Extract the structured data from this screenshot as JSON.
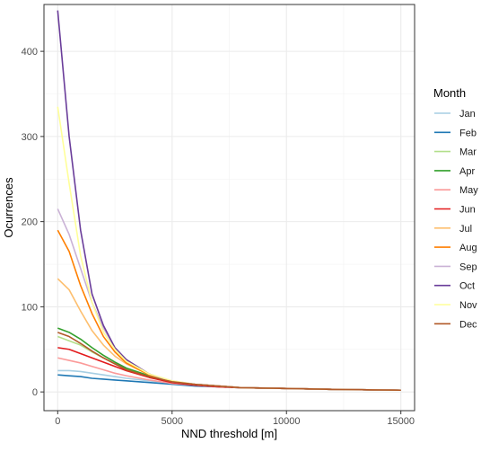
{
  "chart_data": {
    "type": "line",
    "xlabel": "NND threshold [m]",
    "ylabel": "Ocurrences",
    "xlim": [
      -600,
      15600
    ],
    "ylim": [
      -22,
      455
    ],
    "x_ticks": [
      0,
      5000,
      10000,
      15000
    ],
    "x_tick_labels": [
      "0",
      "5000",
      "10000",
      "15000"
    ],
    "y_ticks": [
      0,
      100,
      200,
      300,
      400
    ],
    "y_tick_labels": [
      "0",
      "100",
      "200",
      "300",
      "400"
    ],
    "grid": true,
    "legend": {
      "title": "Month",
      "position": "right"
    },
    "series": [
      {
        "name": "Jan",
        "color": "#a6cee3",
        "x": [
          0,
          500,
          1000,
          1500,
          2000,
          2500,
          3000,
          4000,
          5000,
          6000,
          7000,
          8000,
          10000,
          12000,
          15000
        ],
        "y": [
          25,
          25,
          24,
          22,
          20,
          18,
          16,
          13,
          10,
          8,
          6,
          5,
          4,
          3,
          2
        ]
      },
      {
        "name": "Feb",
        "color": "#1f78b4",
        "x": [
          0,
          500,
          1000,
          1500,
          2000,
          2500,
          3000,
          4000,
          5000,
          6000,
          7000,
          8000,
          10000,
          12000,
          15000
        ],
        "y": [
          20,
          19,
          18,
          16,
          15,
          14,
          13,
          11,
          9,
          7,
          6,
          5,
          4,
          3,
          2
        ]
      },
      {
        "name": "Mar",
        "color": "#b2df8a",
        "x": [
          0,
          500,
          1000,
          1500,
          2000,
          2500,
          3000,
          4000,
          5000,
          6000,
          7000,
          8000,
          10000,
          12000,
          15000
        ],
        "y": [
          65,
          60,
          55,
          47,
          40,
          33,
          27,
          19,
          12,
          9,
          7,
          5,
          4,
          3,
          2
        ]
      },
      {
        "name": "Apr",
        "color": "#33a02c",
        "x": [
          0,
          500,
          1000,
          1500,
          2000,
          2500,
          3000,
          4000,
          5000,
          6000,
          7000,
          8000,
          10000,
          12000,
          15000
        ],
        "y": [
          75,
          70,
          62,
          52,
          43,
          35,
          28,
          19,
          12,
          9,
          7,
          5,
          4,
          3,
          2
        ]
      },
      {
        "name": "May",
        "color": "#fb9a99",
        "x": [
          0,
          500,
          1000,
          1500,
          2000,
          2500,
          3000,
          4000,
          5000,
          6000,
          7000,
          8000,
          10000,
          12000,
          15000
        ],
        "y": [
          40,
          37,
          34,
          30,
          26,
          22,
          19,
          14,
          10,
          8,
          6,
          5,
          4,
          3,
          2
        ]
      },
      {
        "name": "Jun",
        "color": "#e31a1c",
        "x": [
          0,
          500,
          1000,
          1500,
          2000,
          2500,
          3000,
          4000,
          5000,
          6000,
          7000,
          8000,
          10000,
          12000,
          15000
        ],
        "y": [
          52,
          50,
          45,
          40,
          35,
          30,
          25,
          17,
          11,
          8,
          6,
          5,
          4,
          3,
          2
        ]
      },
      {
        "name": "Jul",
        "color": "#fdbf6f",
        "x": [
          0,
          500,
          1000,
          1500,
          2000,
          2500,
          3000,
          4000,
          5000,
          6000,
          7000,
          8000,
          10000,
          12000,
          15000
        ],
        "y": [
          133,
          120,
          95,
          72,
          55,
          42,
          33,
          20,
          12,
          9,
          7,
          5,
          4,
          3,
          2
        ]
      },
      {
        "name": "Aug",
        "color": "#ff7f00",
        "x": [
          0,
          500,
          1000,
          1500,
          2000,
          2500,
          3000,
          4000,
          5000,
          6000,
          7000,
          8000,
          10000,
          12000,
          15000
        ],
        "y": [
          190,
          165,
          125,
          92,
          65,
          47,
          34,
          20,
          12,
          9,
          7,
          5,
          4,
          3,
          2
        ]
      },
      {
        "name": "Sep",
        "color": "#cab2d6",
        "x": [
          0,
          500,
          1000,
          1500,
          2000,
          2500,
          3000,
          4000,
          5000,
          6000,
          7000,
          8000,
          10000,
          12000,
          15000
        ],
        "y": [
          215,
          185,
          145,
          105,
          75,
          52,
          37,
          21,
          13,
          9,
          7,
          5,
          4,
          3,
          2
        ]
      },
      {
        "name": "Oct",
        "color": "#6a3d9a",
        "x": [
          0,
          500,
          1000,
          1500,
          2000,
          2500,
          3000,
          4000,
          5000,
          6000,
          7000,
          8000,
          10000,
          12000,
          15000
        ],
        "y": [
          448,
          300,
          190,
          115,
          78,
          52,
          38,
          21,
          12,
          9,
          7,
          5,
          4,
          3,
          2
        ]
      },
      {
        "name": "Nov",
        "color": "#ffff99",
        "x": [
          0,
          500,
          1000,
          1500,
          2000,
          2500,
          3000,
          4000,
          5000,
          6000,
          7000,
          8000,
          10000,
          12000,
          15000
        ],
        "y": [
          335,
          245,
          160,
          105,
          70,
          50,
          36,
          21,
          13,
          9,
          7,
          5,
          4,
          3,
          2
        ]
      },
      {
        "name": "Dec",
        "color": "#b15928",
        "x": [
          0,
          500,
          1000,
          1500,
          2000,
          2500,
          3000,
          4000,
          5000,
          6000,
          7000,
          8000,
          10000,
          12000,
          15000
        ],
        "y": [
          70,
          65,
          57,
          48,
          40,
          33,
          26,
          18,
          12,
          9,
          7,
          5,
          4,
          3,
          2
        ]
      }
    ]
  }
}
